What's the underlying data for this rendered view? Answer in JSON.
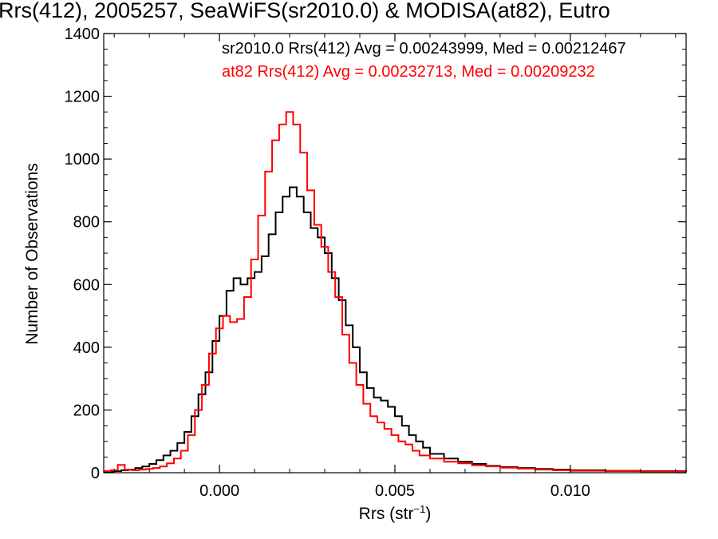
{
  "chart_data": {
    "type": "line",
    "title": "Rrs(412), 2005257, SeaWiFS(sr2010.0) & MODISA(at82), Eutro",
    "xlabel_base": "Rrs (str",
    "xlabel_sup": "−1",
    "xlabel_close": ")",
    "ylabel": "Number of Observations",
    "xlim": [
      -0.0033,
      0.0133
    ],
    "ylim": [
      0,
      1400
    ],
    "xticks": [
      0.0,
      0.005,
      0.01
    ],
    "xtick_labels": [
      "0.000",
      "0.005",
      "0.010"
    ],
    "yticks": [
      0,
      200,
      400,
      600,
      800,
      1000,
      1200,
      1400
    ],
    "ytick_labels": [
      "0",
      "200",
      "400",
      "600",
      "800",
      "1000",
      "1200",
      "1400"
    ],
    "grid": false,
    "legend_placement": "top-right",
    "series": [
      {
        "name": "sr2010.0",
        "label": "sr2010.0 Rrs(412) Avg = 0.00243999, Med = 0.00212467",
        "color": "#000000",
        "x": [
          -0.0033,
          -0.003,
          -0.0028,
          -0.0026,
          -0.0024,
          -0.0022,
          -0.002,
          -0.0018,
          -0.0016,
          -0.0014,
          -0.0012,
          -0.001,
          -0.0008,
          -0.0006,
          -0.0004,
          -0.0002,
          0.0,
          0.0002,
          0.0004,
          0.0006,
          0.0008,
          0.001,
          0.0012,
          0.0014,
          0.0016,
          0.0018,
          0.002,
          0.0022,
          0.0024,
          0.0026,
          0.0028,
          0.003,
          0.0032,
          0.0034,
          0.0036,
          0.0038,
          0.004,
          0.0042,
          0.0044,
          0.0046,
          0.0048,
          0.005,
          0.0052,
          0.0054,
          0.0056,
          0.0058,
          0.006,
          0.0064,
          0.0068,
          0.0072,
          0.0076,
          0.008,
          0.0085,
          0.009,
          0.0095,
          0.01,
          0.011,
          0.012,
          0.0133
        ],
        "y": [
          3,
          5,
          8,
          10,
          15,
          20,
          28,
          40,
          55,
          70,
          95,
          130,
          180,
          250,
          320,
          420,
          500,
          580,
          620,
          600,
          620,
          640,
          690,
          760,
          830,
          880,
          910,
          880,
          830,
          780,
          750,
          700,
          620,
          550,
          470,
          400,
          320,
          270,
          240,
          230,
          210,
          180,
          150,
          120,
          100,
          80,
          60,
          45,
          35,
          28,
          22,
          18,
          15,
          12,
          10,
          8,
          6,
          5,
          3
        ]
      },
      {
        "name": "at82",
        "label": "at82 Rrs(412) Avg = 0.00232713, Med = 0.00209232",
        "color": "#ff0000",
        "x": [
          -0.0033,
          -0.0031,
          -0.0029,
          -0.0027,
          -0.0025,
          -0.0023,
          -0.0021,
          -0.0019,
          -0.0017,
          -0.0015,
          -0.0013,
          -0.0011,
          -0.0009,
          -0.0007,
          -0.0005,
          -0.0003,
          -0.0001,
          0.0001,
          0.0003,
          0.0005,
          0.0007,
          0.0009,
          0.0011,
          0.0013,
          0.0015,
          0.0017,
          0.0019,
          0.0021,
          0.0023,
          0.0025,
          0.0027,
          0.0029,
          0.0031,
          0.0033,
          0.0035,
          0.0037,
          0.0039,
          0.0041,
          0.0043,
          0.0045,
          0.0047,
          0.0049,
          0.0051,
          0.0053,
          0.0055,
          0.0057,
          0.006,
          0.0064,
          0.0068,
          0.0072,
          0.0076,
          0.008,
          0.0085,
          0.009,
          0.0095,
          0.01,
          0.011,
          0.012,
          0.0133
        ],
        "y": [
          5,
          8,
          25,
          10,
          8,
          10,
          12,
          15,
          20,
          30,
          45,
          70,
          120,
          200,
          280,
          380,
          460,
          500,
          480,
          490,
          560,
          680,
          820,
          960,
          1060,
          1110,
          1150,
          1110,
          1020,
          900,
          790,
          720,
          640,
          560,
          440,
          350,
          280,
          220,
          180,
          160,
          140,
          120,
          100,
          90,
          70,
          55,
          45,
          35,
          30,
          24,
          20,
          16,
          13,
          10,
          8,
          6,
          5,
          4,
          2
        ]
      }
    ]
  }
}
